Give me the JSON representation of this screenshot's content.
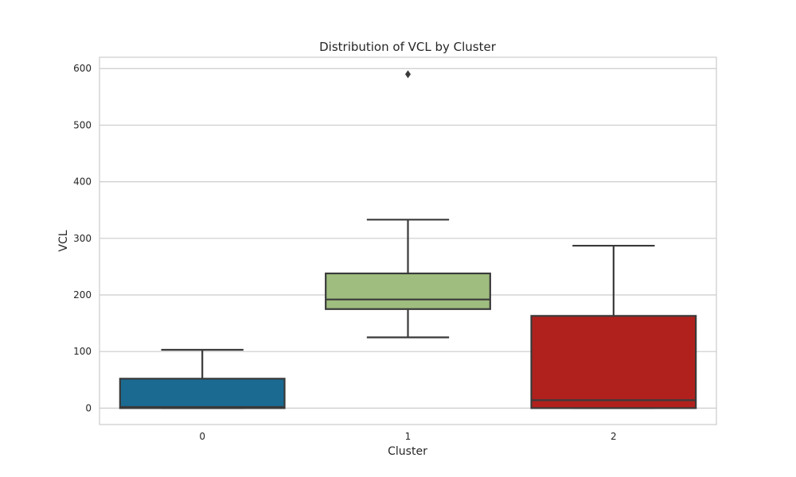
{
  "chart_data": {
    "type": "box",
    "title": "Distribution of VCL by Cluster",
    "xlabel": "Cluster",
    "ylabel": "VCL",
    "ylim": [
      -29,
      620
    ],
    "yticks": [
      0,
      100,
      200,
      300,
      400,
      500,
      600
    ],
    "grid": "horizontal",
    "categories": [
      "0",
      "1",
      "2"
    ],
    "boxes": [
      {
        "category": "0",
        "color": "#1a6a92",
        "whisker_low": 0,
        "q1": 0,
        "median": 2,
        "q3": 52,
        "whisker_high": 103,
        "outliers": []
      },
      {
        "category": "1",
        "color": "#9fbd7f",
        "whisker_low": 125,
        "q1": 175,
        "median": 192,
        "q3": 238,
        "whisker_high": 333,
        "outliers": [
          590
        ]
      },
      {
        "category": "2",
        "color": "#b0211d",
        "whisker_low": 0,
        "q1": 0,
        "median": 14,
        "q3": 163,
        "whisker_high": 287,
        "outliers": []
      }
    ]
  }
}
